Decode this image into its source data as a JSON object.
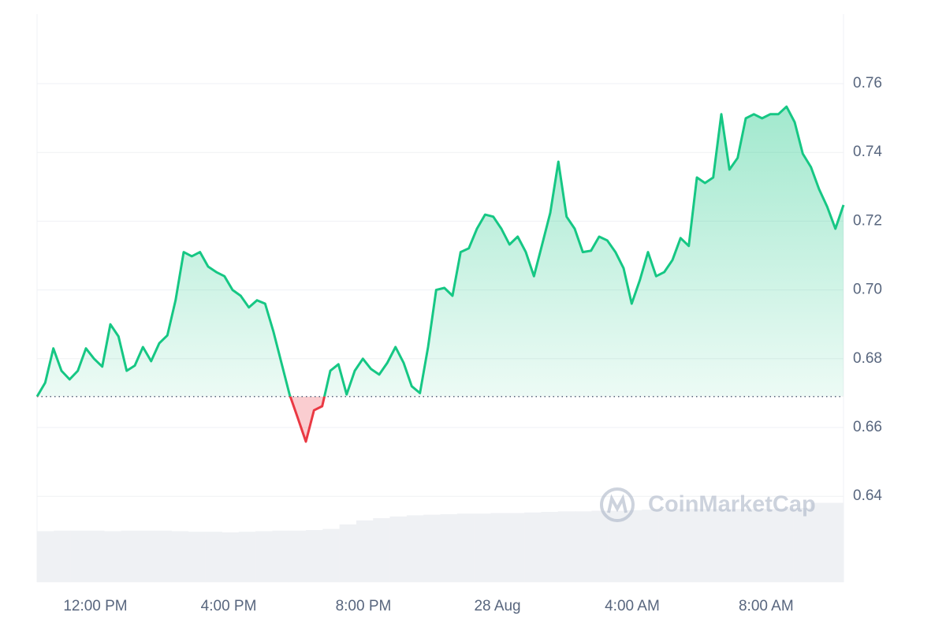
{
  "chart_data": {
    "type": "line",
    "watermark": "CoinMarketCap",
    "baseline": 0.669,
    "series": [
      {
        "name": "Price",
        "color": "#16c784",
        "below_color": "#ea3943",
        "values": [
          0.669,
          0.673,
          0.683,
          0.6765,
          0.674,
          0.6765,
          0.683,
          0.68,
          0.6777,
          0.69,
          0.6865,
          0.6765,
          0.678,
          0.6834,
          0.6793,
          0.6845,
          0.6868,
          0.697,
          0.711,
          0.7098,
          0.711,
          0.7068,
          0.7052,
          0.704,
          0.7,
          0.6983,
          0.6949,
          0.697,
          0.696,
          0.688,
          0.6788,
          0.6696,
          0.6628,
          0.6559,
          0.665,
          0.6662,
          0.6765,
          0.6784,
          0.6696,
          0.6765,
          0.68,
          0.677,
          0.6754,
          0.6788,
          0.6834,
          0.6788,
          0.672,
          0.67,
          0.6834,
          0.7,
          0.7006,
          0.6983,
          0.711,
          0.7121,
          0.7178,
          0.7219,
          0.7213,
          0.7178,
          0.7132,
          0.7155,
          0.711,
          0.704,
          0.7132,
          0.7224,
          0.7373,
          0.7213,
          0.7178,
          0.711,
          0.7114,
          0.7155,
          0.7144,
          0.711,
          0.7063,
          0.696,
          0.7029,
          0.711,
          0.704,
          0.7052,
          0.7087,
          0.7151,
          0.7128,
          0.7327,
          0.7311,
          0.7327,
          0.7511,
          0.735,
          0.7384,
          0.7499,
          0.7511,
          0.7499,
          0.7511,
          0.7511,
          0.7533,
          0.7488,
          0.7396,
          0.7357,
          0.7293,
          0.7242,
          0.7178,
          0.7247
        ]
      },
      {
        "name": "Volume",
        "color": "#eff1f4",
        "axis": "y2",
        "values": [
          9.0,
          9.1,
          9.1,
          9.1,
          9.0,
          9.1,
          9.1,
          9.1,
          9.0,
          8.9,
          8.9,
          8.8,
          8.9,
          9.0,
          9.1,
          9.1,
          9.2,
          9.4,
          10.2,
          10.9,
          11.3,
          11.6,
          11.8,
          11.9,
          12.0,
          12.1,
          12.1,
          12.2,
          12.2,
          12.3,
          12.4,
          12.5,
          12.5,
          12.6,
          12.6,
          12.7,
          12.8,
          12.8,
          12.9,
          12.9,
          12.9,
          12.9,
          12.9,
          12.9,
          13.0,
          13.1,
          14.0,
          14.0
        ]
      }
    ],
    "xlim": [
      0,
      99
    ],
    "xticks": [
      {
        "value": 7.16,
        "label": "12:00 PM"
      },
      {
        "value": 23.52,
        "label": "4:00 PM"
      },
      {
        "value": 40.06,
        "label": "8:00 PM"
      },
      {
        "value": 56.52,
        "label": "28 Aug"
      },
      {
        "value": 73.06,
        "label": "4:00 AM"
      },
      {
        "value": 89.5,
        "label": "8:00 AM"
      }
    ],
    "ylim": [
      0.615,
      0.78
    ],
    "yticks": [
      0.64,
      0.66,
      0.68,
      {
        "value": 0.7,
        "label": "0.70"
      },
      0.72,
      0.74,
      0.76
    ],
    "y2lim": [
      0,
      100
    ],
    "grid": true
  }
}
